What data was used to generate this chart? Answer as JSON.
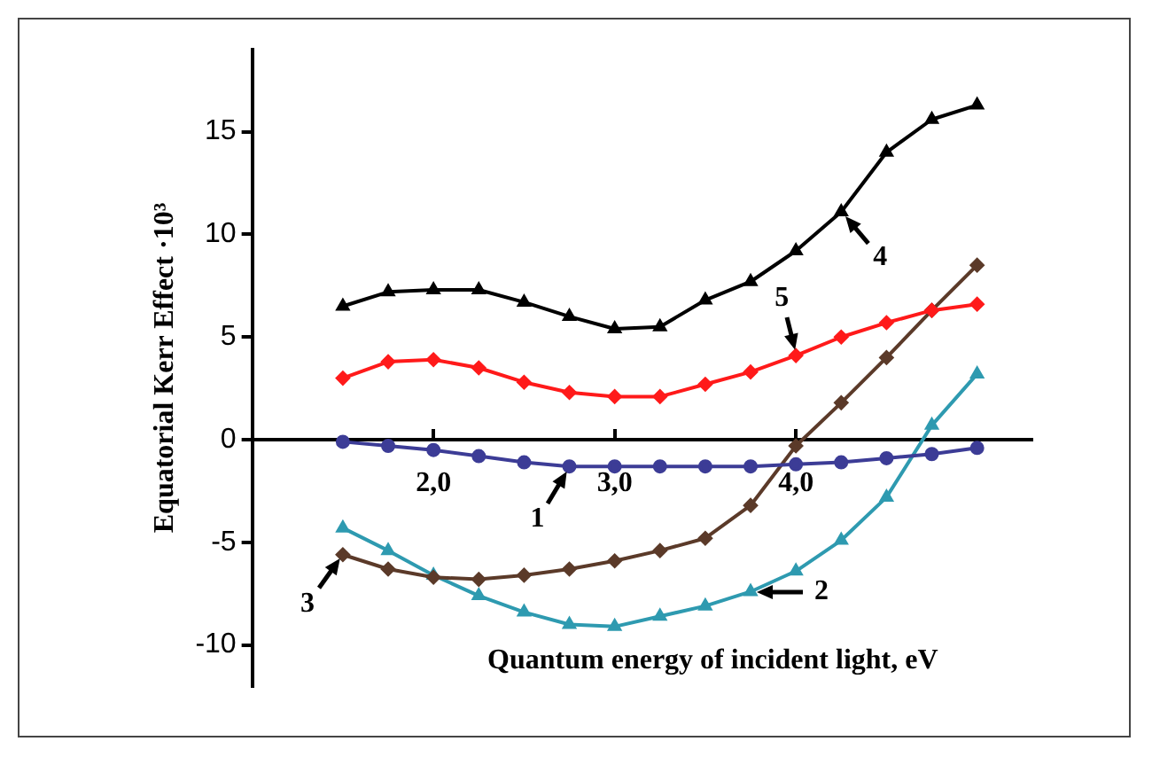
{
  "chart_data": {
    "type": "line",
    "xlabel": "Quantum energy of incident light, eV",
    "ylabel": "Equatorial Kerr Effect ·10³",
    "xlim": [
      1,
      5.3
    ],
    "ylim": [
      -12,
      19
    ],
    "xticks": [
      {
        "value": 2,
        "label": "2,0"
      },
      {
        "value": 3,
        "label": "3,0"
      },
      {
        "value": 4,
        "label": "4,0"
      }
    ],
    "yticks": [
      -10,
      -5,
      0,
      5,
      10,
      15
    ],
    "grid": false,
    "legend": false,
    "x": [
      1.5,
      1.75,
      2.0,
      2.25,
      2.5,
      2.75,
      3.0,
      3.25,
      3.5,
      3.75,
      4.0,
      4.25,
      4.5,
      4.75,
      5.0
    ],
    "series": [
      {
        "color": "#000000",
        "marker": "triangle",
        "values": [
          6.5,
          7.2,
          7.3,
          7.3,
          6.7,
          6.0,
          5.4,
          5.5,
          6.8,
          7.7,
          9.2,
          11.1,
          14.0,
          15.6,
          16.3
        ]
      },
      {
        "color": "#ff1a1a",
        "marker": "diamond",
        "values": [
          3.0,
          3.8,
          3.9,
          3.5,
          2.8,
          2.3,
          2.1,
          2.1,
          2.7,
          3.3,
          4.1,
          5.0,
          5.7,
          6.3,
          6.6
        ]
      },
      {
        "color": "#3c3c96",
        "marker": "circle",
        "values": [
          -0.1,
          -0.3,
          -0.5,
          -0.8,
          -1.1,
          -1.3,
          -1.3,
          -1.3,
          -1.3,
          -1.3,
          -1.2,
          -1.1,
          -0.9,
          -0.7,
          -0.4
        ]
      },
      {
        "color": "#5b3a29",
        "marker": "diamond",
        "values": [
          -5.6,
          -6.3,
          -6.7,
          -6.8,
          -6.6,
          -6.3,
          -5.9,
          -5.4,
          -4.8,
          -3.2,
          -0.3,
          1.8,
          4.0,
          6.3,
          8.5
        ]
      },
      {
        "color": "#2e9ab0",
        "marker": "triangle",
        "values": [
          -4.3,
          -5.4,
          -6.6,
          -7.6,
          -8.4,
          -9.0,
          -9.1,
          -8.6,
          -8.1,
          -7.4,
          -6.4,
          -4.9,
          -2.8,
          0.7,
          3.2
        ]
      }
    ],
    "annotations": [
      {
        "text": "1",
        "x": 2.75,
        "y": -1.3
      },
      {
        "text": "2",
        "x": 3.75,
        "y": -7.4
      },
      {
        "text": "3",
        "x": 1.5,
        "y": -5.6
      },
      {
        "text": "4",
        "x": 4.25,
        "y": 11.1
      },
      {
        "text": "5",
        "x": 4.0,
        "y": 4.1
      }
    ]
  }
}
